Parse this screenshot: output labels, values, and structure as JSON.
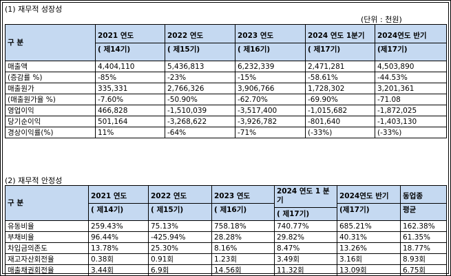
{
  "section1": {
    "title": "(1) 재무적 성장성",
    "unit": "(단위 : 천원)",
    "table": {
      "header": [
        "구 분",
        [
          "2021 연도",
          "( 제14기)"
        ],
        [
          "2022 연도",
          "( 제15기)"
        ],
        [
          "2023 연도",
          "( 제16기)"
        ],
        [
          "2024 연도 1분기",
          "( 제17기)"
        ],
        [
          "2024연도 반기",
          "(제17기)"
        ]
      ],
      "rows": [
        [
          "매출액",
          "4,404,110",
          "5,436,813",
          "6,232,339",
          "2,471,281",
          "4,503,890"
        ],
        [
          "(증감률 %)",
          "-85%",
          "-23%",
          "-15%",
          "-58.61%",
          "-44.53%"
        ],
        [
          "매출원가",
          "335,331",
          "2,766,326",
          "3,906,766",
          "1,728,302",
          "3,201,361"
        ],
        [
          "(매출원가율 %)",
          "-7.60%",
          "-50.90%",
          "-62.70%",
          "-69.90%",
          "-71.08"
        ],
        [
          "영업이익",
          "466,828",
          "-1,510,039",
          "-3,517,400",
          "-1,015,682",
          "-1,872,025"
        ],
        [
          "당기순이익",
          "501,164",
          "-3,268,622",
          "-3,926,782",
          "-801,640",
          "-1,403,130"
        ],
        [
          "경상이익률(%)",
          "11%",
          "-64%",
          "-71%",
          "(-33%)",
          "(-33%)"
        ]
      ]
    }
  },
  "section2": {
    "title": "(2) 재무적 안정성",
    "table": {
      "header": [
        "구 분",
        [
          "2021 연도",
          "( 제14기)"
        ],
        [
          "2022 연도",
          "( 제15기)"
        ],
        [
          "2023 연도",
          "( 제16기)"
        ],
        [
          "2024 연도 1 분기",
          "( 제17기)"
        ],
        [
          "2024연도 반기",
          "(제17기)"
        ],
        [
          "동업종",
          "평균"
        ]
      ],
      "rows": [
        [
          "유동비율",
          "259.43%",
          "75.13%",
          "758.18%",
          "740.77%",
          "685.21%",
          "162.38%"
        ],
        [
          "부채비율",
          "96.44%",
          "-425.94%",
          "28.28%",
          "29.82%",
          "40.31%",
          "61.35%"
        ],
        [
          "차입금의존도",
          "13.78%",
          "25.30%",
          "8.16%",
          "8.47%",
          "13.26%",
          "18.77%"
        ],
        [
          "재고자산회전율",
          "0.38회",
          "0.91회",
          "1.23회",
          "3.49회",
          "3.16회",
          "8.93회"
        ],
        [
          "매출채권회전율",
          "3.44회",
          "6.9회",
          "14.56회",
          "11.32회",
          "13.09회",
          "6.75회"
        ]
      ]
    }
  }
}
